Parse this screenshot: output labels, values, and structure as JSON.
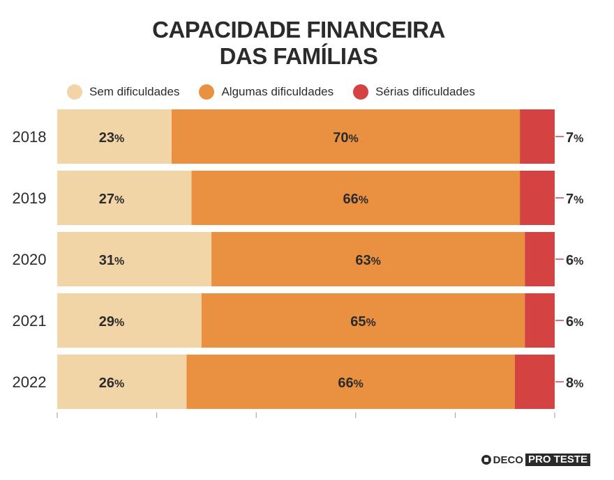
{
  "chart_data": {
    "type": "bar",
    "orientation": "horizontal",
    "stacked": true,
    "title_lines": [
      "CAPACIDADE FINANCEIRA",
      "DAS FAMÍLIAS"
    ],
    "categories": [
      "2018",
      "2019",
      "2020",
      "2021",
      "2022"
    ],
    "series": [
      {
        "name": "Sem dificuldades",
        "color": "#f2d5a7",
        "values": [
          23,
          27,
          31,
          29,
          26
        ]
      },
      {
        "name": "Algumas dificuldades",
        "color": "#ea9141",
        "values": [
          70,
          66,
          63,
          65,
          66
        ]
      },
      {
        "name": "Sérias dificuldades",
        "color": "#d44241",
        "values": [
          7,
          7,
          6,
          6,
          8
        ]
      }
    ],
    "value_suffix": "%",
    "xlim": [
      0,
      100
    ],
    "legend_position": "top",
    "grid": false
  },
  "branding": {
    "deco": "DECO",
    "proteste": "PRO TESTE"
  }
}
